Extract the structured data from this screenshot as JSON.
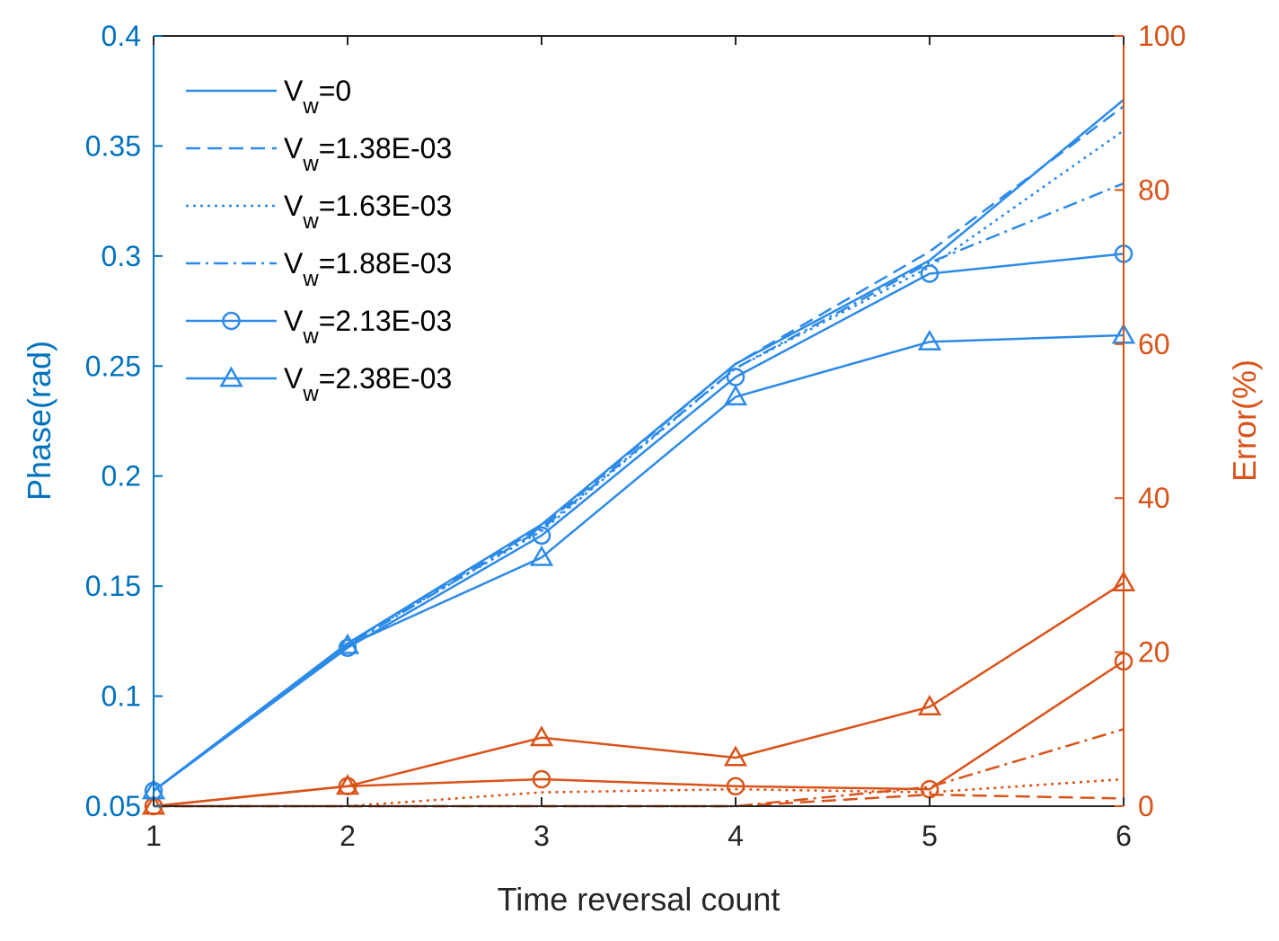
{
  "chart_data": {
    "type": "line",
    "title": "",
    "xlabel": "Time reversal count",
    "ylabel_left": "Phase(rad)",
    "ylabel_right": "Error(%)",
    "x": [
      1,
      2,
      3,
      4,
      5,
      6
    ],
    "xlim": [
      1,
      6
    ],
    "ylim_left": [
      0.05,
      0.4
    ],
    "ylim_right": [
      0,
      100
    ],
    "xticks": [
      "1",
      "2",
      "3",
      "4",
      "5",
      "6"
    ],
    "yticks_left": [
      "0.05",
      "0.1",
      "0.15",
      "0.2",
      "0.25",
      "0.3",
      "0.35",
      "0.4"
    ],
    "yticks_right": [
      "0",
      "20",
      "40",
      "60",
      "80",
      "100"
    ],
    "legend_position": "top-left",
    "colors": {
      "left_axis": "#0072BD",
      "right_axis": "#D95319",
      "phase_series": "#2C8AE8",
      "text": "#262626"
    },
    "phase_series": [
      {
        "name": "V_w=0",
        "label_main": "V",
        "label_sub": "w",
        "label_rest": "=0",
        "dash": "solid",
        "marker": "none",
        "values": [
          0.057,
          0.124,
          0.178,
          0.251,
          0.298,
          0.371
        ]
      },
      {
        "name": "V_w=1.38E-03",
        "label_main": "V",
        "label_sub": "w",
        "label_rest": "=1.38E-03",
        "dash": "dashed",
        "marker": "none",
        "values": [
          0.057,
          0.124,
          0.177,
          0.251,
          0.302,
          0.368
        ]
      },
      {
        "name": "V_w=1.63E-03",
        "label_main": "V",
        "label_sub": "w",
        "label_rest": "=1.63E-03",
        "dash": "dotted",
        "marker": "none",
        "values": [
          0.057,
          0.124,
          0.175,
          0.249,
          0.295,
          0.357
        ]
      },
      {
        "name": "V_w=1.88E-03",
        "label_main": "V",
        "label_sub": "w",
        "label_rest": "=1.88E-03",
        "dash": "dashdot",
        "marker": "none",
        "values": [
          0.057,
          0.123,
          0.176,
          0.249,
          0.297,
          0.333
        ]
      },
      {
        "name": "V_w=2.13E-03",
        "label_main": "V",
        "label_sub": "w",
        "label_rest": "=2.13E-03",
        "dash": "solid",
        "marker": "circle",
        "values": [
          0.057,
          0.122,
          0.173,
          0.245,
          0.292,
          0.301
        ]
      },
      {
        "name": "V_w=2.38E-03",
        "label_main": "V",
        "label_sub": "w",
        "label_rest": "=2.38E-03",
        "dash": "solid",
        "marker": "triangle",
        "values": [
          0.057,
          0.123,
          0.163,
          0.236,
          0.261,
          0.264
        ]
      }
    ],
    "error_series": [
      {
        "name": "Error V_w=1.38E-03",
        "dash": "dashed",
        "marker": "none",
        "values": [
          0,
          0,
          0,
          0,
          1.5,
          1
        ]
      },
      {
        "name": "Error V_w=1.63E-03",
        "dash": "dotted",
        "marker": "none",
        "values": [
          0,
          0,
          1.8,
          2.2,
          1.8,
          3.5
        ]
      },
      {
        "name": "Error V_w=1.88E-03",
        "dash": "dashdot",
        "marker": "none",
        "values": [
          0,
          0,
          0,
          0,
          2.5,
          10
        ]
      },
      {
        "name": "Error V_w=2.13E-03",
        "dash": "solid",
        "marker": "circle",
        "values": [
          0,
          2.6,
          3.5,
          2.6,
          2.2,
          18.8
        ]
      },
      {
        "name": "Error V_w=2.38E-03",
        "dash": "solid",
        "marker": "triangle",
        "values": [
          0,
          2.6,
          8.9,
          6.3,
          12.9,
          29
        ]
      }
    ]
  }
}
